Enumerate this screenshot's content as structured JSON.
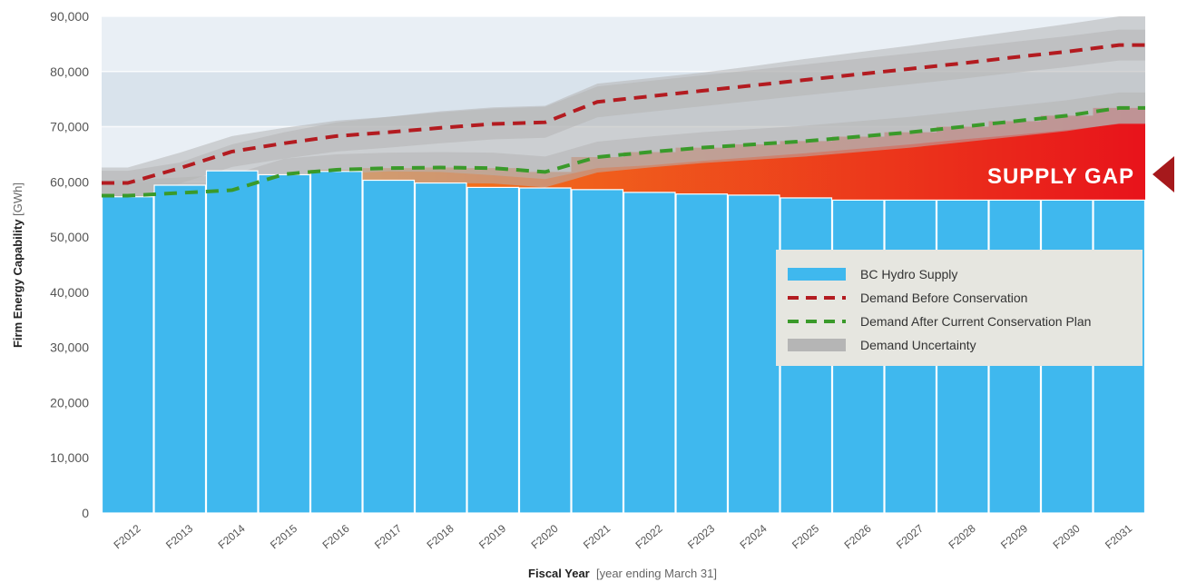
{
  "chart_data": {
    "type": "bar",
    "title": "",
    "ylabel_bold": "Firm Energy Capability",
    "ylabel_unit": " [GWh]",
    "xlabel_bold": "Fiscal Year",
    "xlabel_note": "  [year ending March 31]",
    "ylim": [
      0,
      90000
    ],
    "yticks": [
      "0",
      "10,000",
      "20,000",
      "30,000",
      "40,000",
      "50,000",
      "60,000",
      "70,000",
      "80,000",
      "90,000"
    ],
    "categories": [
      "F2012",
      "F2013",
      "F2014",
      "F2015",
      "F2016",
      "F2017",
      "F2018",
      "F2019",
      "F2020",
      "F2021",
      "F2022",
      "F2023",
      "F2024",
      "F2025",
      "F2026",
      "F2027",
      "F2028",
      "F2029",
      "F2030",
      "F2031"
    ],
    "series": [
      {
        "name": "BC Hydro Supply",
        "kind": "bar",
        "values": [
          57300,
          59400,
          62000,
          61300,
          61900,
          60300,
          59800,
          59000,
          58900,
          58600,
          58100,
          57800,
          57600,
          57100,
          56700,
          56700,
          56700,
          56700,
          56700,
          56700
        ]
      },
      {
        "name": "Demand Before Conservation",
        "kind": "dashed-line",
        "values": [
          59800,
          62500,
          65500,
          67000,
          68300,
          69000,
          69800,
          70500,
          70800,
          74500,
          75500,
          76500,
          77500,
          78500,
          79500,
          80500,
          81500,
          82600,
          83600,
          84800
        ]
      },
      {
        "name": "Demand After Current Conservation Plan",
        "kind": "dashed-line",
        "values": [
          57500,
          58000,
          58500,
          61400,
          62200,
          62500,
          62600,
          62500,
          61800,
          64500,
          65400,
          66200,
          66800,
          67400,
          68200,
          69000,
          70000,
          71000,
          72000,
          73400
        ]
      },
      {
        "name": "Demand Uncertainty",
        "kind": "band",
        "lower": [
          56000,
          57300,
          57800,
          59800,
          61500,
          61900,
          61800,
          61200,
          60500,
          62500,
          63000,
          63800,
          64500,
          65200,
          66000,
          66800,
          67700,
          68500,
          69400,
          70500
        ],
        "upper": [
          62000,
          63500,
          66800,
          69000,
          70800,
          71800,
          72800,
          73500,
          73800,
          77800,
          78800,
          79800,
          81000,
          82300,
          83500,
          84700,
          86000,
          87300,
          88600,
          90000
        ]
      }
    ],
    "annotation": "SUPPLY GAP",
    "legend_position": "right",
    "grid": true,
    "colors": {
      "bar": "#3fb8ee",
      "bar_edge": "#ffffff",
      "before": "#b31b20",
      "after": "#3a9a2a",
      "band": "#b5b5b5",
      "background_dark": "#d9e3ec",
      "background_light": "#e9eff5",
      "gap_start": "#f7a21c",
      "gap_end": "#e8131b",
      "gap_arrow": "#a6191c",
      "legend_bg": "#e6e6e0"
    }
  }
}
